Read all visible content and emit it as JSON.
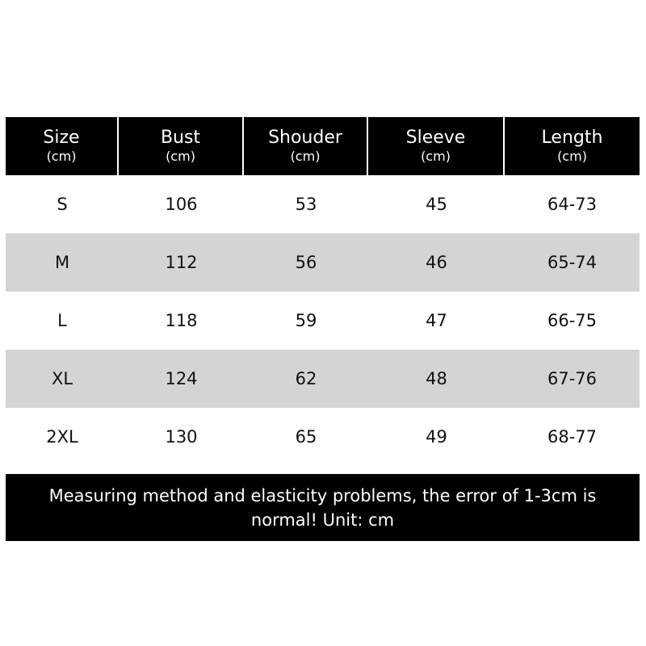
{
  "table": {
    "columns": [
      {
        "label": "Size",
        "unit": "(cm)"
      },
      {
        "label": "Bust",
        "unit": "(cm)"
      },
      {
        "label": "Shouder",
        "unit": "(cm)"
      },
      {
        "label": "Sleeve",
        "unit": "(cm)"
      },
      {
        "label": "Length",
        "unit": "(cm)"
      }
    ],
    "rows": [
      [
        "S",
        "106",
        "53",
        "45",
        "64-73"
      ],
      [
        "M",
        "112",
        "56",
        "46",
        "65-74"
      ],
      [
        "L",
        "118",
        "59",
        "47",
        "66-75"
      ],
      [
        "XL",
        "124",
        "62",
        "48",
        "67-76"
      ],
      [
        "2XL",
        "130",
        "65",
        "49",
        "68-77"
      ]
    ]
  },
  "note": "Measuring method and elasticity problems, the error of 1-3cm is normal! Unit: cm"
}
